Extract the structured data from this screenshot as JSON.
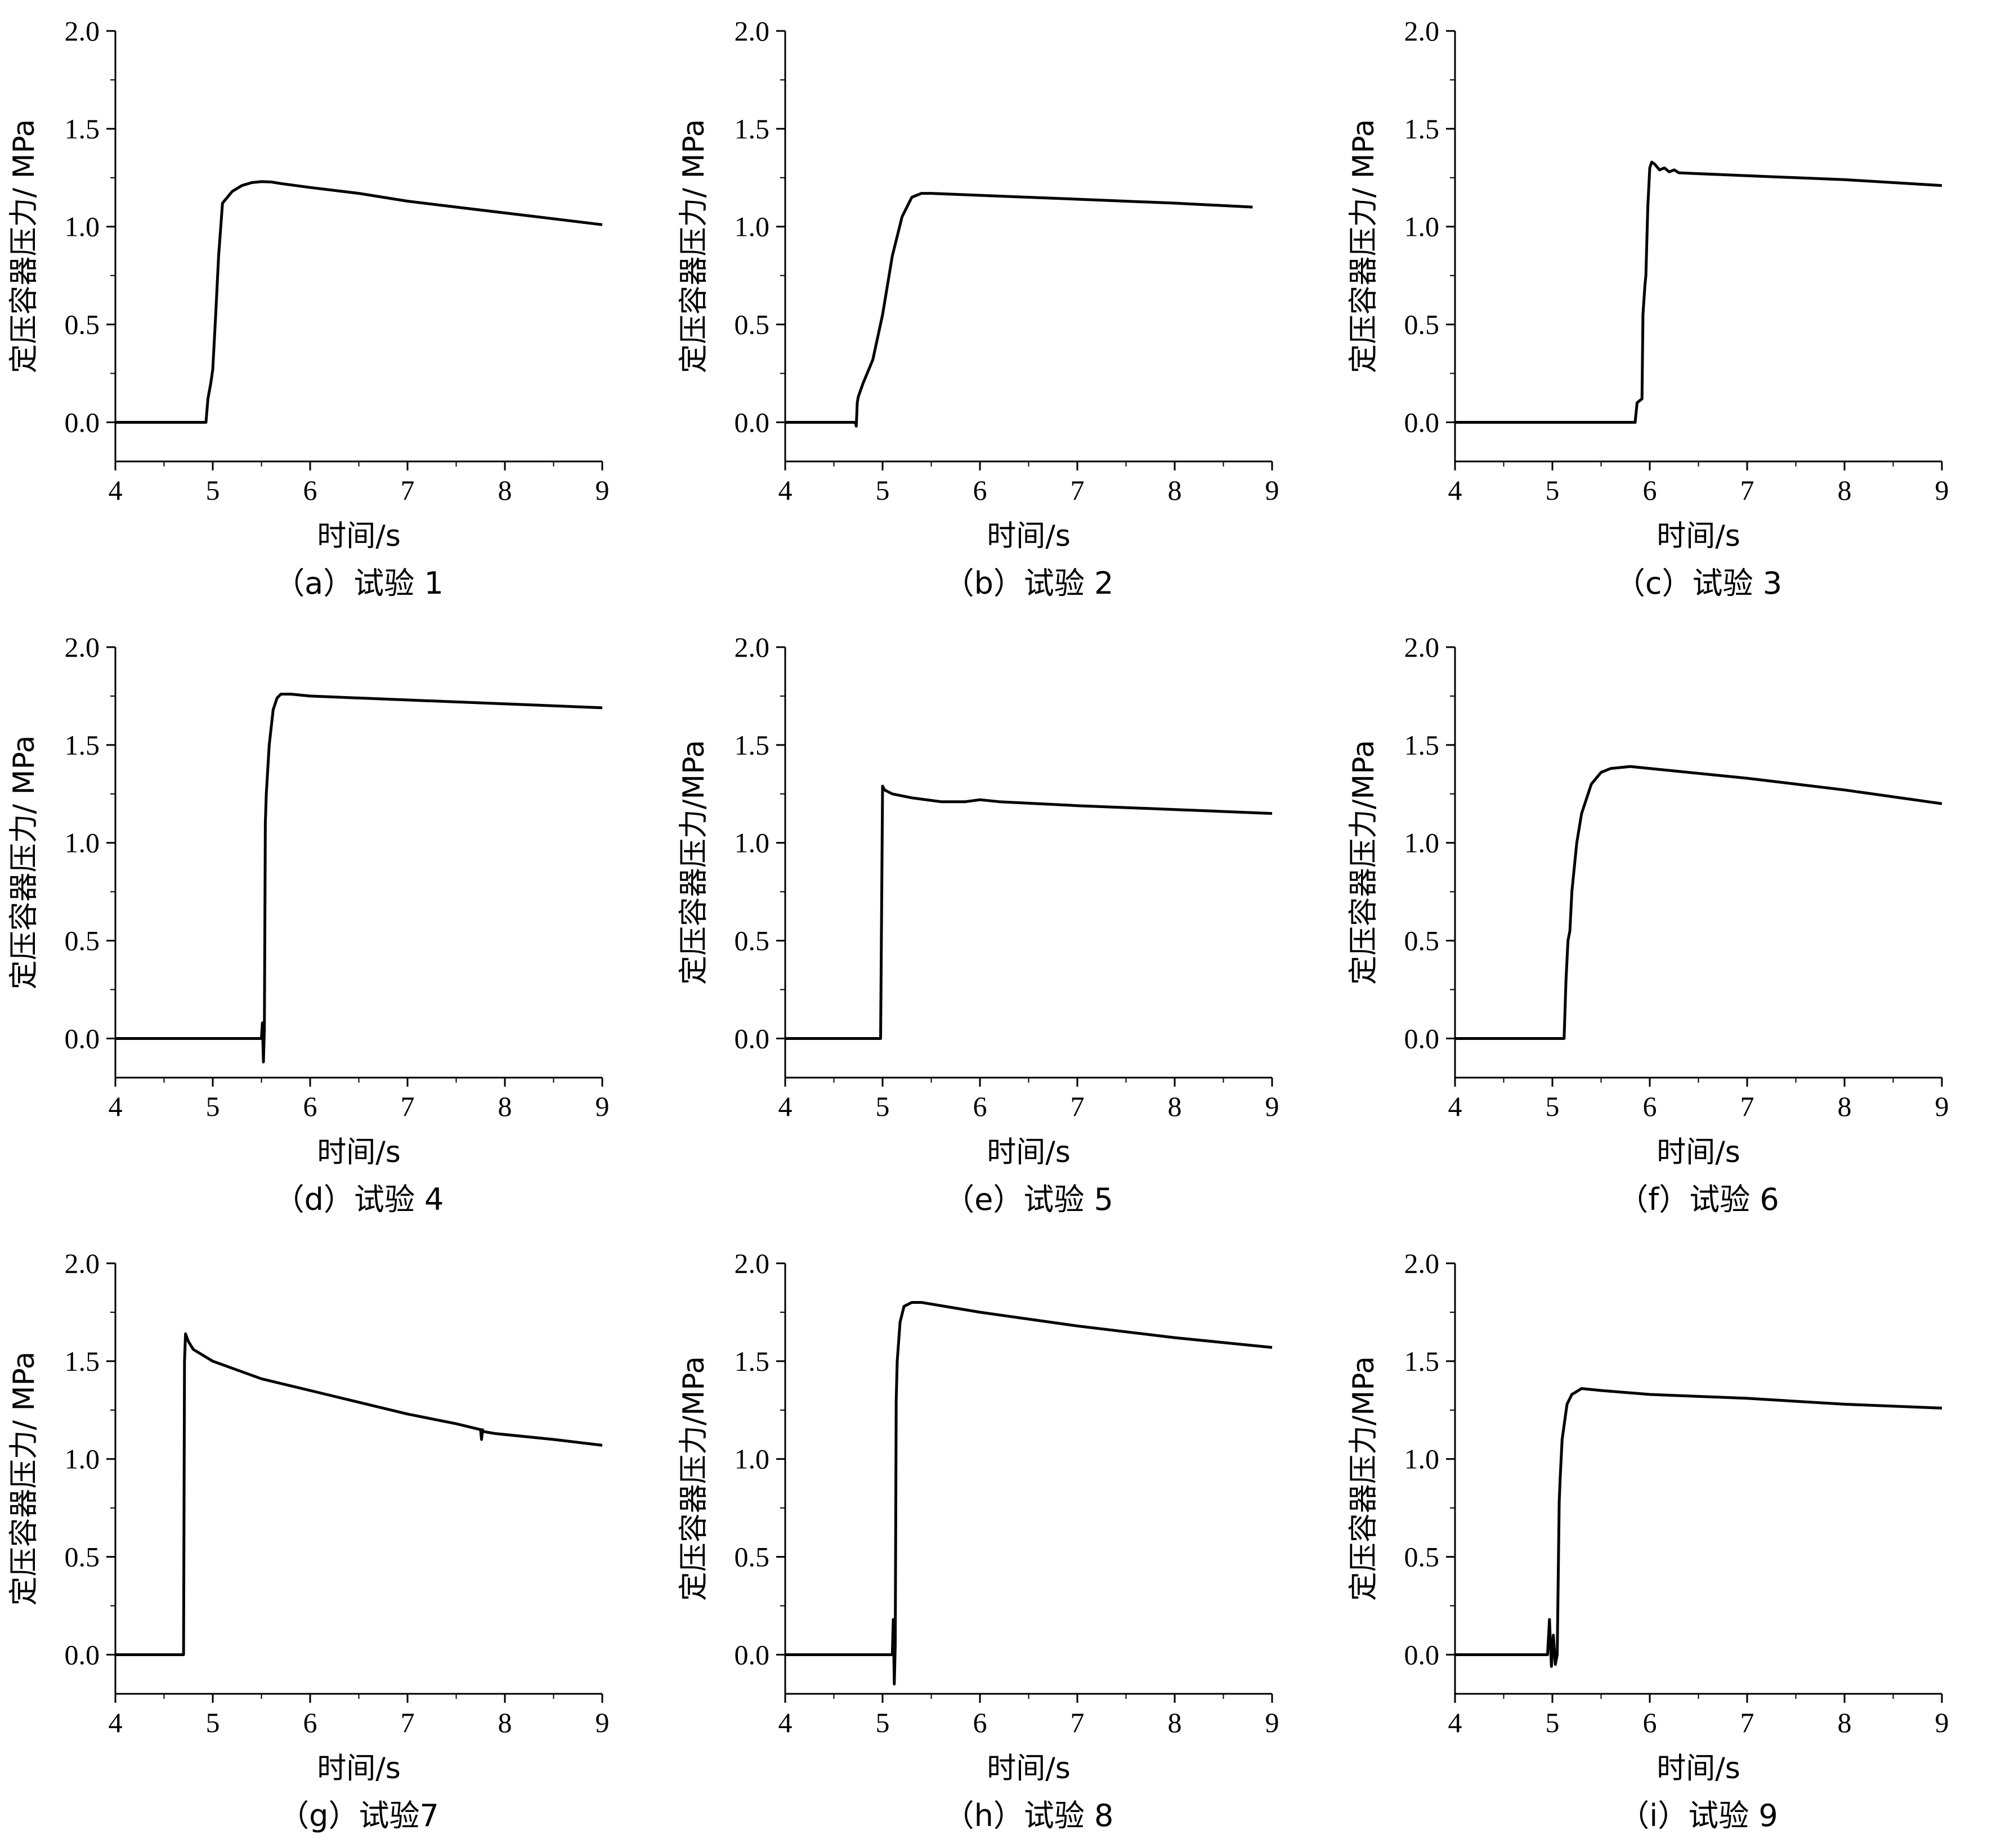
{
  "chart_data": [
    {
      "id": "a",
      "type": "line",
      "caption": "（a）试验 1",
      "xlabel": "时间/s",
      "ylabel": "定压容器压力/ MPa",
      "xlim": [
        4,
        9
      ],
      "ylim": [
        -0.2,
        2.0
      ],
      "xticks": [
        "4",
        "5",
        "6",
        "7",
        "8",
        "9"
      ],
      "yticks": [
        "0.0",
        "0.5",
        "1.0",
        "1.5",
        "2.0"
      ],
      "series": [
        {
          "x": [
            4.0,
            4.9,
            4.93,
            4.95,
            4.98,
            5.0,
            5.03,
            5.06,
            5.1,
            5.2,
            5.3,
            5.4,
            5.5,
            5.6,
            5.7,
            6.0,
            6.5,
            7.0,
            7.5,
            8.0,
            8.5,
            9.0
          ],
          "y": [
            0.0,
            0.0,
            0.0,
            0.12,
            0.2,
            0.27,
            0.55,
            0.85,
            1.12,
            1.18,
            1.21,
            1.225,
            1.23,
            1.228,
            1.22,
            1.2,
            1.17,
            1.13,
            1.1,
            1.07,
            1.04,
            1.01
          ]
        }
      ]
    },
    {
      "id": "b",
      "type": "line",
      "caption": "（b）试验 2",
      "xlabel": "时间/s",
      "ylabel": "定压容器压力/ MPa",
      "xlim": [
        4,
        9
      ],
      "ylim": [
        -0.2,
        2.0
      ],
      "xticks": [
        "4",
        "5",
        "6",
        "7",
        "8",
        "9"
      ],
      "yticks": [
        "0.0",
        "0.5",
        "1.0",
        "1.5",
        "2.0"
      ],
      "series": [
        {
          "x": [
            4.0,
            4.72,
            4.73,
            4.74,
            4.75,
            4.8,
            4.9,
            5.0,
            5.1,
            5.2,
            5.3,
            5.4,
            5.5,
            6.0,
            7.0,
            8.0,
            8.8
          ],
          "y": [
            0.0,
            0.0,
            -0.02,
            0.1,
            0.13,
            0.2,
            0.32,
            0.55,
            0.85,
            1.05,
            1.15,
            1.17,
            1.17,
            1.16,
            1.14,
            1.12,
            1.1
          ]
        }
      ]
    },
    {
      "id": "c",
      "type": "line",
      "caption": "（c）试验 3",
      "xlabel": "时间/s",
      "ylabel": "定压容器压力/ MPa",
      "xlim": [
        4,
        9
      ],
      "ylim": [
        -0.2,
        2.0
      ],
      "xticks": [
        "4",
        "5",
        "6",
        "7",
        "8",
        "9"
      ],
      "yticks": [
        "0.0",
        "0.5",
        "1.0",
        "1.5",
        "2.0"
      ],
      "series": [
        {
          "x": [
            4.0,
            5.85,
            5.87,
            5.92,
            5.93,
            5.95,
            5.96,
            5.98,
            6.0,
            6.02,
            6.05,
            6.1,
            6.15,
            6.2,
            6.25,
            6.3,
            7.0,
            8.0,
            9.0
          ],
          "y": [
            0.0,
            0.0,
            0.1,
            0.12,
            0.55,
            0.7,
            0.75,
            1.1,
            1.3,
            1.33,
            1.32,
            1.29,
            1.3,
            1.28,
            1.29,
            1.275,
            1.26,
            1.24,
            1.21
          ]
        }
      ]
    },
    {
      "id": "d",
      "type": "line",
      "caption": "（d）试验 4",
      "xlabel": "时间/s",
      "ylabel": "定压容器压力/ MPa",
      "xlim": [
        4,
        9
      ],
      "ylim": [
        -0.2,
        2.0
      ],
      "xticks": [
        "4",
        "5",
        "6",
        "7",
        "8",
        "9"
      ],
      "yticks": [
        "0.0",
        "0.5",
        "1.0",
        "1.5",
        "2.0"
      ],
      "series": [
        {
          "x": [
            4.0,
            5.5,
            5.51,
            5.52,
            5.53,
            5.54,
            5.55,
            5.58,
            5.62,
            5.66,
            5.7,
            5.8,
            6.0,
            7.0,
            8.0,
            9.0
          ],
          "y": [
            0.0,
            0.0,
            0.08,
            -0.12,
            0.05,
            1.1,
            1.25,
            1.5,
            1.68,
            1.74,
            1.76,
            1.76,
            1.75,
            1.73,
            1.71,
            1.69
          ]
        }
      ]
    },
    {
      "id": "e",
      "type": "line",
      "caption": "（e）试验 5",
      "xlabel": "时间/s",
      "ylabel": "定压容器压力/MPa",
      "xlim": [
        4,
        9
      ],
      "ylim": [
        -0.2,
        2.0
      ],
      "xticks": [
        "4",
        "5",
        "6",
        "7",
        "8",
        "9"
      ],
      "yticks": [
        "0.0",
        "0.5",
        "1.0",
        "1.5",
        "2.0"
      ],
      "series": [
        {
          "x": [
            4.0,
            4.98,
            5.0,
            5.02,
            5.1,
            5.3,
            5.6,
            5.85,
            6.0,
            6.2,
            7.0,
            8.0,
            9.0
          ],
          "y": [
            0.0,
            0.0,
            1.29,
            1.27,
            1.25,
            1.23,
            1.21,
            1.21,
            1.22,
            1.21,
            1.19,
            1.17,
            1.15
          ]
        }
      ]
    },
    {
      "id": "f",
      "type": "line",
      "caption": "（f）试验 6",
      "xlabel": "时间/s",
      "ylabel": "定压容器压力/MPa",
      "xlim": [
        4,
        9
      ],
      "ylim": [
        -0.2,
        2.0
      ],
      "xticks": [
        "4",
        "5",
        "6",
        "7",
        "8",
        "9"
      ],
      "yticks": [
        "0.0",
        "0.5",
        "1.0",
        "1.5",
        "2.0"
      ],
      "series": [
        {
          "x": [
            4.0,
            5.12,
            5.14,
            5.16,
            5.18,
            5.2,
            5.25,
            5.3,
            5.4,
            5.5,
            5.6,
            5.8,
            6.0,
            7.0,
            8.0,
            9.0
          ],
          "y": [
            0.0,
            0.0,
            0.3,
            0.5,
            0.55,
            0.75,
            1.0,
            1.15,
            1.3,
            1.36,
            1.38,
            1.39,
            1.38,
            1.33,
            1.27,
            1.2
          ]
        }
      ]
    },
    {
      "id": "g",
      "type": "line",
      "caption": "（g）试验7",
      "xlabel": "时间/s",
      "ylabel": "定压容器压力/ MPa",
      "xlim": [
        4,
        9
      ],
      "ylim": [
        -0.2,
        2.0
      ],
      "xticks": [
        "4",
        "5",
        "6",
        "7",
        "8",
        "9"
      ],
      "yticks": [
        "0.0",
        "0.5",
        "1.0",
        "1.5",
        "2.0"
      ],
      "series": [
        {
          "x": [
            4.0,
            4.7,
            4.71,
            4.72,
            4.75,
            4.8,
            5.0,
            5.5,
            6.0,
            6.5,
            7.0,
            7.5,
            7.75,
            7.76,
            7.77,
            7.78,
            7.9,
            8.5,
            9.0
          ],
          "y": [
            0.0,
            0.0,
            1.5,
            1.64,
            1.6,
            1.56,
            1.5,
            1.41,
            1.35,
            1.29,
            1.23,
            1.18,
            1.15,
            1.1,
            1.15,
            1.14,
            1.13,
            1.1,
            1.07
          ]
        }
      ]
    },
    {
      "id": "h",
      "type": "line",
      "caption": "（h）试验 8",
      "xlabel": "时间/s",
      "ylabel": "定压容器压力/MPa",
      "xlim": [
        4,
        9
      ],
      "ylim": [
        -0.2,
        2.0
      ],
      "xticks": [
        "4",
        "5",
        "6",
        "7",
        "8",
        "9"
      ],
      "yticks": [
        "0.0",
        "0.5",
        "1.0",
        "1.5",
        "2.0"
      ],
      "series": [
        {
          "x": [
            4.0,
            5.1,
            5.11,
            5.12,
            5.13,
            5.14,
            5.15,
            5.18,
            5.22,
            5.3,
            5.4,
            6.0,
            7.0,
            8.0,
            9.0
          ],
          "y": [
            0.0,
            0.0,
            0.18,
            -0.15,
            0.05,
            1.3,
            1.5,
            1.7,
            1.78,
            1.8,
            1.8,
            1.75,
            1.68,
            1.62,
            1.57
          ]
        }
      ]
    },
    {
      "id": "i",
      "type": "line",
      "caption": "（i）试验 9",
      "xlabel": "时间/s",
      "ylabel": "定压容器压力/MPa",
      "xlim": [
        4,
        9
      ],
      "ylim": [
        -0.2,
        2.0
      ],
      "xticks": [
        "4",
        "5",
        "6",
        "7",
        "8",
        "9"
      ],
      "yticks": [
        "0.0",
        "0.5",
        "1.0",
        "1.5",
        "2.0"
      ],
      "series": [
        {
          "x": [
            4.0,
            4.95,
            4.97,
            4.99,
            5.01,
            5.03,
            5.05,
            5.07,
            5.08,
            5.1,
            5.15,
            5.2,
            5.3,
            5.5,
            6.0,
            7.0,
            8.0,
            9.0
          ],
          "y": [
            0.0,
            0.0,
            0.18,
            -0.06,
            0.1,
            -0.05,
            0.0,
            0.78,
            0.9,
            1.1,
            1.28,
            1.33,
            1.36,
            1.35,
            1.33,
            1.31,
            1.28,
            1.26
          ]
        }
      ]
    }
  ]
}
